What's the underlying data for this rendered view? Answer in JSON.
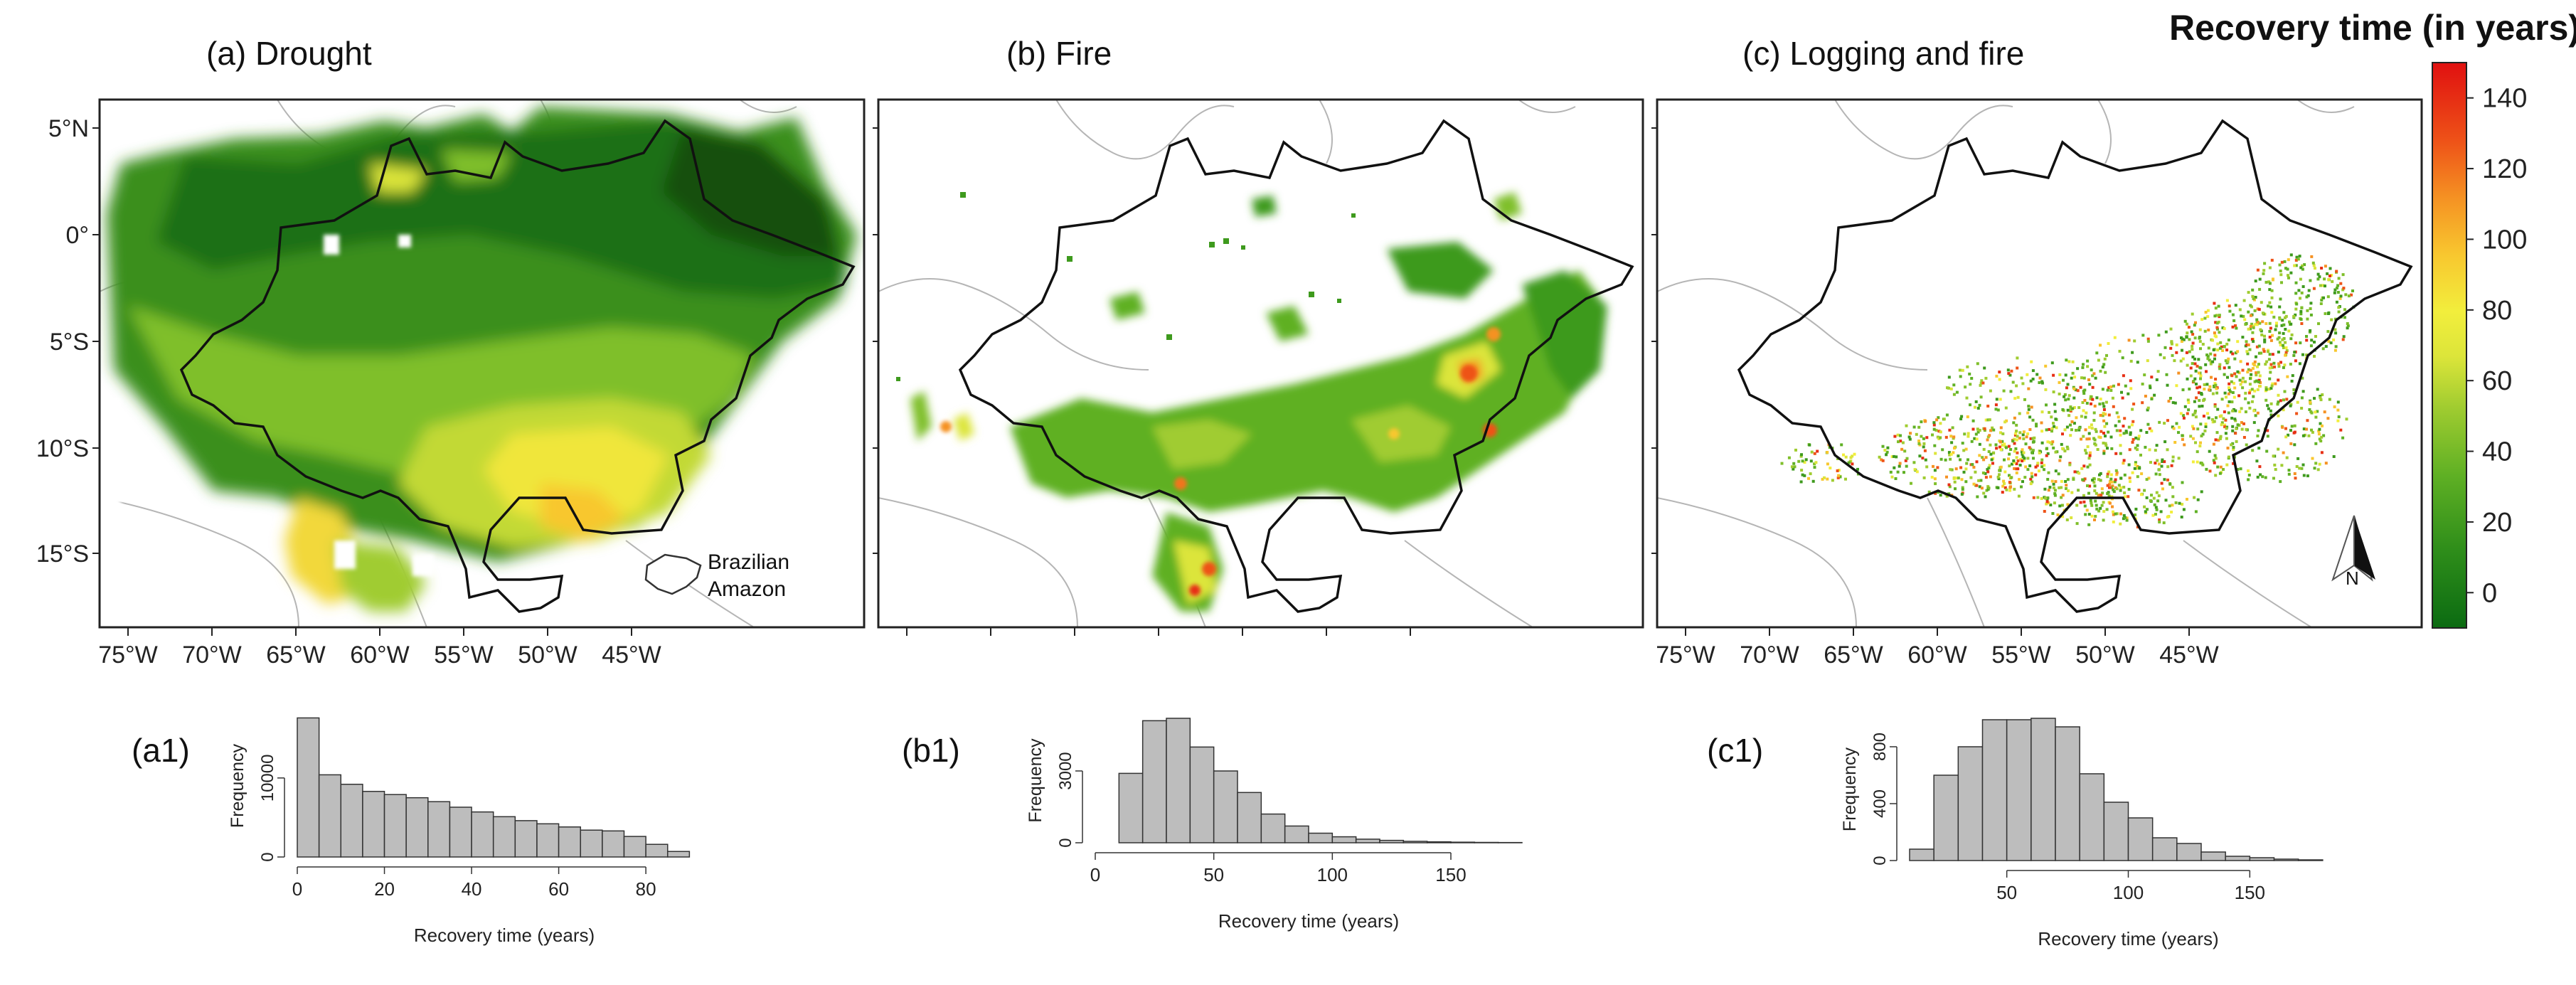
{
  "panels": [
    {
      "label": "(a) Drought"
    },
    {
      "label": "(b) Fire"
    },
    {
      "label": "(c) Logging and fire"
    }
  ],
  "legend": {
    "title": "Recovery time (in years)",
    "ticks": [
      "140",
      "120",
      "100",
      "80",
      "60",
      "40",
      "20",
      "0"
    ],
    "range": [
      -10,
      150
    ],
    "colors": [
      "#0b6b12",
      "#1e7d16",
      "#2f8e1a",
      "#46a01f",
      "#5fb024",
      "#7fbf2a",
      "#a0cc30",
      "#c2d935",
      "#dce53a",
      "#f2ee3c",
      "#f7dc35",
      "#f8c72f",
      "#f7ad29",
      "#f59223",
      "#f2741d",
      "#ee5318",
      "#e72f14",
      "#e01010"
    ]
  },
  "map": {
    "lat_ticks": [
      "5°N",
      "0°",
      "5°S",
      "10°S",
      "15°S"
    ],
    "lon_ticks": [
      "75°W",
      "70°W",
      "65°W",
      "60°W",
      "55°W",
      "50°W",
      "45°W"
    ],
    "inset_label": [
      "Brazilian",
      "Amazon"
    ],
    "north_label": "N"
  },
  "histograms": [
    {
      "label": "(a1)",
      "ylabel": "Frequency",
      "xlabel": "Recovery time (years)",
      "yticks": [
        0,
        10000
      ],
      "xticks": [
        0,
        20,
        40,
        60,
        80
      ]
    },
    {
      "label": "(b1)",
      "ylabel": "Frequency",
      "xlabel": "Recovery time (years)",
      "yticks": [
        0,
        3000
      ],
      "xticks": [
        0,
        50,
        100,
        150
      ]
    },
    {
      "label": "(c1)",
      "ylabel": "Frequency",
      "xlabel": "Recovery time (years)",
      "yticks": [
        0,
        400,
        800
      ],
      "xticks": [
        50,
        100,
        150
      ]
    }
  ],
  "chart_data": [
    {
      "type": "bar",
      "xlabel": "Recovery time (years)",
      "ylabel": "Frequency",
      "bin_start": 0,
      "bin_width": 5,
      "xlim": [
        0,
        95
      ],
      "ylim": [
        0,
        18000
      ],
      "values": [
        17600,
        10400,
        9200,
        8300,
        7900,
        7500,
        7000,
        6300,
        5700,
        5100,
        4600,
        4200,
        3800,
        3400,
        3300,
        2600,
        1600,
        700
      ]
    },
    {
      "type": "bar",
      "xlabel": "Recovery time (years)",
      "ylabel": "Frequency",
      "bin_start": 10,
      "bin_width": 10,
      "xlim": [
        0,
        180
      ],
      "ylim": [
        0,
        5200
      ],
      "values": [
        2900,
        5100,
        5200,
        4000,
        3000,
        2100,
        1200,
        700,
        400,
        250,
        150,
        100,
        60,
        40,
        25,
        15,
        10
      ]
    },
    {
      "type": "bar",
      "xlabel": "Recovery time (years)",
      "ylabel": "Frequency",
      "bin_start": 10,
      "bin_width": 10,
      "xlim": [
        10,
        190
      ],
      "ylim": [
        0,
        1000
      ],
      "values": [
        80,
        600,
        800,
        990,
        990,
        1000,
        940,
        610,
        410,
        300,
        160,
        120,
        60,
        30,
        20,
        10,
        5
      ]
    }
  ]
}
